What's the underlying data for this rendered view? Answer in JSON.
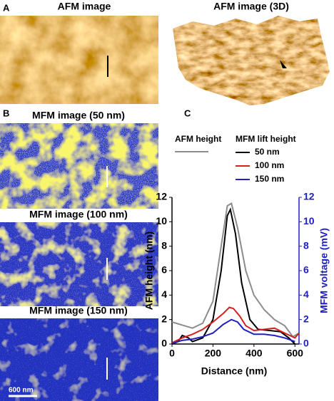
{
  "panels": {
    "a": {
      "letter": "A",
      "title": "AFM image",
      "title_3d": "AFM image (3D)"
    },
    "b": {
      "letter": "B",
      "titles": [
        "MFM image (50 nm)",
        "MFM image (100 nm)",
        "MFM image (150 nm)"
      ],
      "scale_bar": "600 nm"
    },
    "c": {
      "letter": "C"
    }
  },
  "chart_data": {
    "type": "line",
    "x_label": "Distance (nm)",
    "y_label": "AFM height (nm)",
    "y2_label": "MFM voltage (mV)",
    "legend_title": "MFM lift height",
    "xlim": [
      0,
      620
    ],
    "xticks": [
      0,
      200,
      400,
      600
    ],
    "ylim": [
      0,
      12
    ],
    "yticks": [
      0,
      2,
      4,
      6,
      8,
      10,
      12
    ],
    "y2lim": [
      0,
      12
    ],
    "y2ticks": [
      0,
      2,
      4,
      6,
      8,
      10,
      12
    ],
    "y2_color": "#2020c0",
    "series": [
      {
        "name": "AFM height",
        "color": "#8c8c8c",
        "x": [
          0,
          100,
          150,
          200,
          240,
          270,
          290,
          320,
          360,
          400,
          450,
          500,
          550,
          590,
          620
        ],
        "values": [
          1.8,
          1.3,
          1.7,
          3.5,
          8,
          11.3,
          11.5,
          9.5,
          6,
          4,
          2.8,
          2,
          1.5,
          0.6,
          0.9
        ]
      },
      {
        "name": "50 nm",
        "color": "#000000",
        "axis": "y2",
        "x": [
          0,
          30,
          50,
          80,
          100,
          150,
          200,
          240,
          270,
          285,
          310,
          340,
          380,
          420,
          480,
          530,
          570,
          600
        ],
        "values": [
          0,
          0.2,
          0.7,
          0.5,
          0.2,
          0.5,
          2,
          6,
          10.5,
          11,
          9,
          5,
          2,
          1.2,
          1.1,
          1,
          0.5,
          0
        ]
      },
      {
        "name": "100 nm",
        "color": "#d42020",
        "axis": "y2",
        "x": [
          0,
          50,
          100,
          150,
          200,
          250,
          280,
          300,
          330,
          360,
          400,
          450,
          500,
          550,
          600,
          620
        ],
        "values": [
          0.1,
          0.5,
          0.8,
          1.2,
          1.8,
          2.5,
          3,
          2.9,
          2.3,
          1.5,
          1.1,
          1.2,
          1.3,
          0.9,
          0.5,
          0.9
        ]
      },
      {
        "name": "150 nm",
        "color": "#2020c0",
        "axis": "y2",
        "x": [
          0,
          50,
          100,
          150,
          200,
          250,
          290,
          320,
          350,
          400,
          450,
          500,
          550,
          600
        ],
        "values": [
          0.05,
          0.3,
          0.4,
          0.6,
          0.9,
          1.6,
          2,
          1.8,
          1.2,
          0.8,
          0.8,
          0.7,
          0.5,
          0.2
        ]
      }
    ]
  }
}
